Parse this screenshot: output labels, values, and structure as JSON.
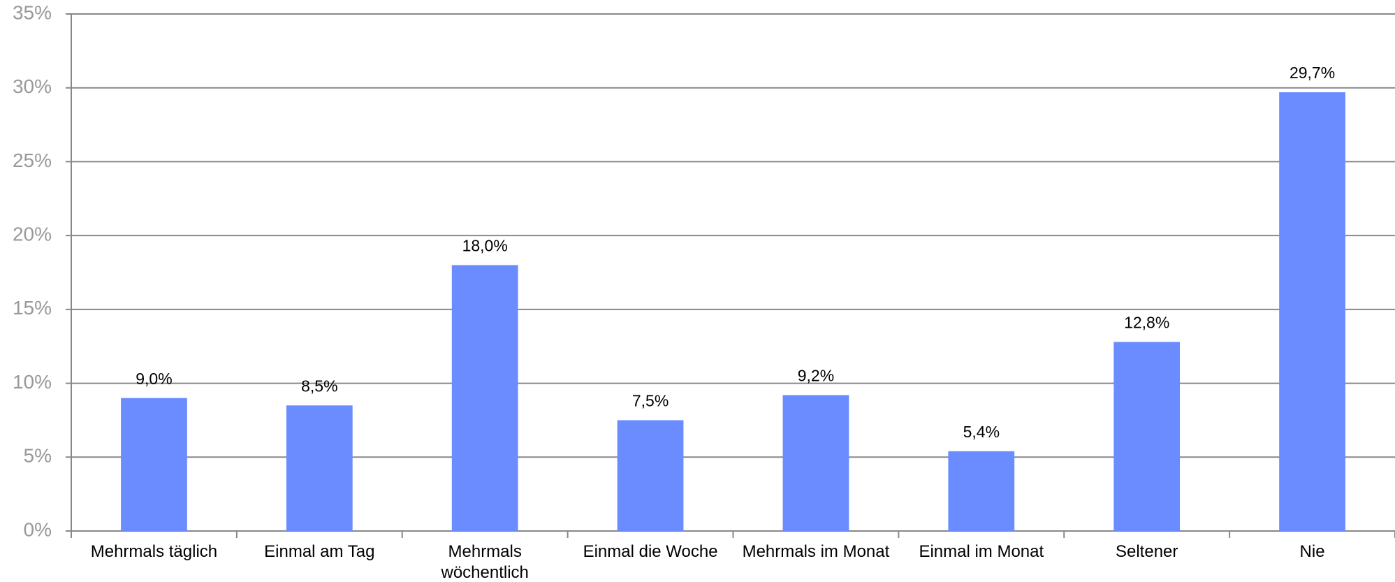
{
  "chart_data": {
    "type": "bar",
    "categories": [
      "Mehrmals täglich",
      "Einmal am Tag",
      "Mehrmals wöchentlich",
      "Einmal die Woche",
      "Mehrmals im Monat",
      "Einmal im Monat",
      "Seltener",
      "Nie"
    ],
    "values": [
      9.0,
      8.5,
      18.0,
      7.5,
      9.2,
      5.4,
      12.8,
      29.7
    ],
    "value_labels": [
      "9,0%",
      "8,5%",
      "18,0%",
      "7,5%",
      "9,2%",
      "5,4%",
      "12,8%",
      "29,7%"
    ],
    "color": "#6b8cff",
    "ylim": [
      0,
      35
    ],
    "yticks": [
      {
        "value": 0,
        "label": "0%"
      },
      {
        "value": 5,
        "label": "5%"
      },
      {
        "value": 10,
        "label": "10%"
      },
      {
        "value": 15,
        "label": "15%"
      },
      {
        "value": 20,
        "label": "20%"
      },
      {
        "value": 25,
        "label": "25%"
      },
      {
        "value": 30,
        "label": "30%"
      },
      {
        "value": 35,
        "label": "35%"
      }
    ],
    "grid": true
  }
}
